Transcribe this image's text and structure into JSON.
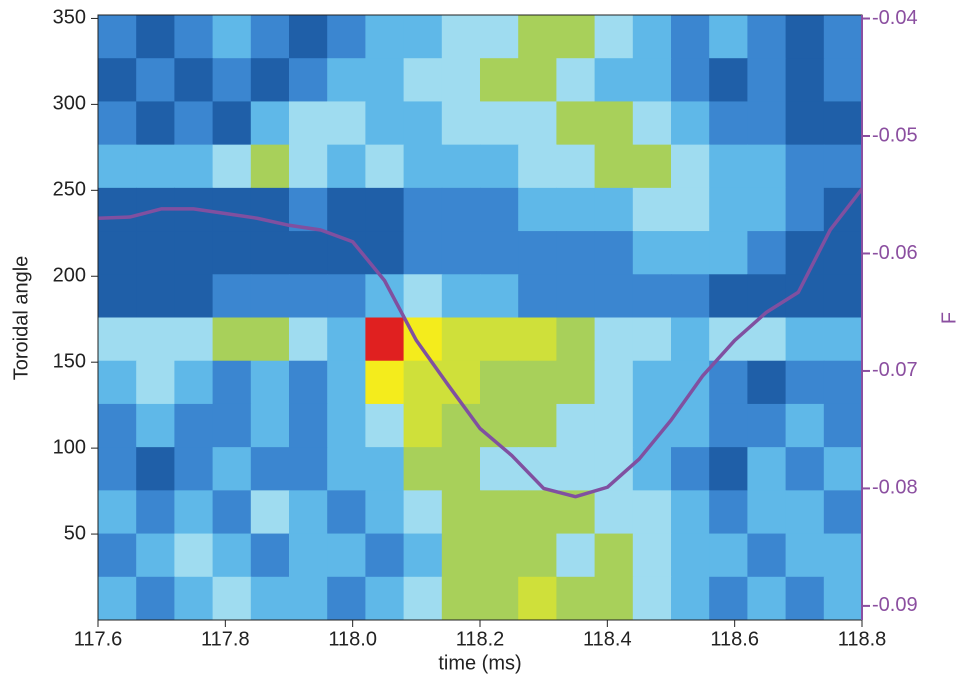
{
  "chart_data": {
    "type": "heatmap_line",
    "xlabel": "time (ms)",
    "ylabel": "Toroidal angle",
    "y2label": "F",
    "xlim": [
      117.6,
      118.8
    ],
    "ylim": [
      0,
      352
    ],
    "y2lim": [
      -0.0912,
      -0.0397
    ],
    "xticks": [
      117.6,
      117.8,
      {
        "value": 118,
        "label": "118.0"
      },
      118.2,
      118.4,
      118.6,
      118.8
    ],
    "yticks": [
      50,
      100,
      150,
      200,
      250,
      300,
      350
    ],
    "y2ticks": [
      -0.04,
      -0.05,
      -0.06,
      -0.07,
      -0.08,
      -0.09
    ],
    "colors": [
      "#1f5fa8",
      "#3b86d0",
      "#5fb8e8",
      "#9fdcf0",
      "#a8d05a",
      "#cfe03a",
      "#f4ec1c",
      "#f08030",
      "#e02020"
    ],
    "z": [
      [
        1,
        0,
        1,
        2,
        1,
        0,
        1,
        2,
        2,
        3,
        3,
        4,
        4,
        3,
        2,
        1,
        2,
        1,
        0,
        1
      ],
      [
        0,
        1,
        0,
        1,
        0,
        1,
        2,
        2,
        3,
        3,
        4,
        4,
        3,
        2,
        2,
        1,
        0,
        1,
        0,
        1
      ],
      [
        1,
        0,
        1,
        0,
        2,
        3,
        3,
        2,
        2,
        3,
        3,
        3,
        4,
        4,
        3,
        2,
        1,
        1,
        0,
        0
      ],
      [
        2,
        2,
        2,
        3,
        4,
        3,
        2,
        3,
        2,
        2,
        2,
        3,
        3,
        4,
        4,
        3,
        2,
        2,
        1,
        1
      ],
      [
        0,
        0,
        0,
        0,
        0,
        1,
        0,
        0,
        1,
        1,
        1,
        2,
        2,
        2,
        3,
        3,
        2,
        2,
        1,
        0
      ],
      [
        0,
        0,
        0,
        0,
        0,
        0,
        0,
        0,
        1,
        1,
        1,
        1,
        1,
        1,
        2,
        2,
        2,
        1,
        0,
        0
      ],
      [
        0,
        0,
        0,
        1,
        1,
        1,
        1,
        2,
        3,
        2,
        2,
        1,
        1,
        1,
        1,
        1,
        0,
        0,
        0,
        0
      ],
      [
        3,
        3,
        3,
        4,
        4,
        3,
        2,
        8,
        6,
        5,
        5,
        5,
        4,
        3,
        3,
        2,
        3,
        3,
        2,
        2
      ],
      [
        2,
        3,
        2,
        1,
        2,
        1,
        2,
        6,
        5,
        5,
        4,
        4,
        4,
        3,
        2,
        2,
        1,
        0,
        1,
        1
      ],
      [
        1,
        2,
        1,
        1,
        2,
        1,
        2,
        3,
        5,
        4,
        4,
        4,
        3,
        3,
        2,
        2,
        1,
        1,
        2,
        1
      ],
      [
        1,
        0,
        1,
        2,
        1,
        1,
        2,
        2,
        4,
        4,
        3,
        3,
        3,
        3,
        2,
        1,
        0,
        2,
        1,
        2
      ],
      [
        2,
        1,
        2,
        1,
        3,
        2,
        1,
        2,
        3,
        4,
        4,
        4,
        4,
        3,
        3,
        2,
        1,
        2,
        2,
        1
      ],
      [
        1,
        2,
        3,
        2,
        1,
        2,
        2,
        1,
        2,
        4,
        4,
        4,
        3,
        4,
        3,
        2,
        2,
        1,
        2,
        2
      ],
      [
        2,
        1,
        2,
        3,
        2,
        2,
        1,
        2,
        3,
        4,
        4,
        5,
        4,
        4,
        3,
        2,
        1,
        2,
        1,
        2
      ]
    ],
    "series": [
      {
        "name": "F",
        "color": "#8050a0",
        "axis": "y2",
        "x": [
          117.6,
          117.65,
          117.7,
          117.75,
          117.8,
          117.85,
          117.9,
          117.95,
          118.0,
          118.05,
          118.1,
          118.15,
          118.2,
          118.25,
          118.3,
          118.35,
          118.4,
          118.45,
          118.5,
          118.55,
          118.6,
          118.65,
          118.7,
          118.75,
          118.8
        ],
        "values": [
          -0.057,
          -0.0569,
          -0.0562,
          -0.0562,
          -0.0566,
          -0.057,
          -0.0576,
          -0.058,
          -0.059,
          -0.0623,
          -0.0674,
          -0.0712,
          -0.0749,
          -0.0772,
          -0.08,
          -0.0807,
          -0.0799,
          -0.0775,
          -0.0742,
          -0.0704,
          -0.0674,
          -0.065,
          -0.0633,
          -0.058,
          -0.0545
        ]
      }
    ]
  }
}
